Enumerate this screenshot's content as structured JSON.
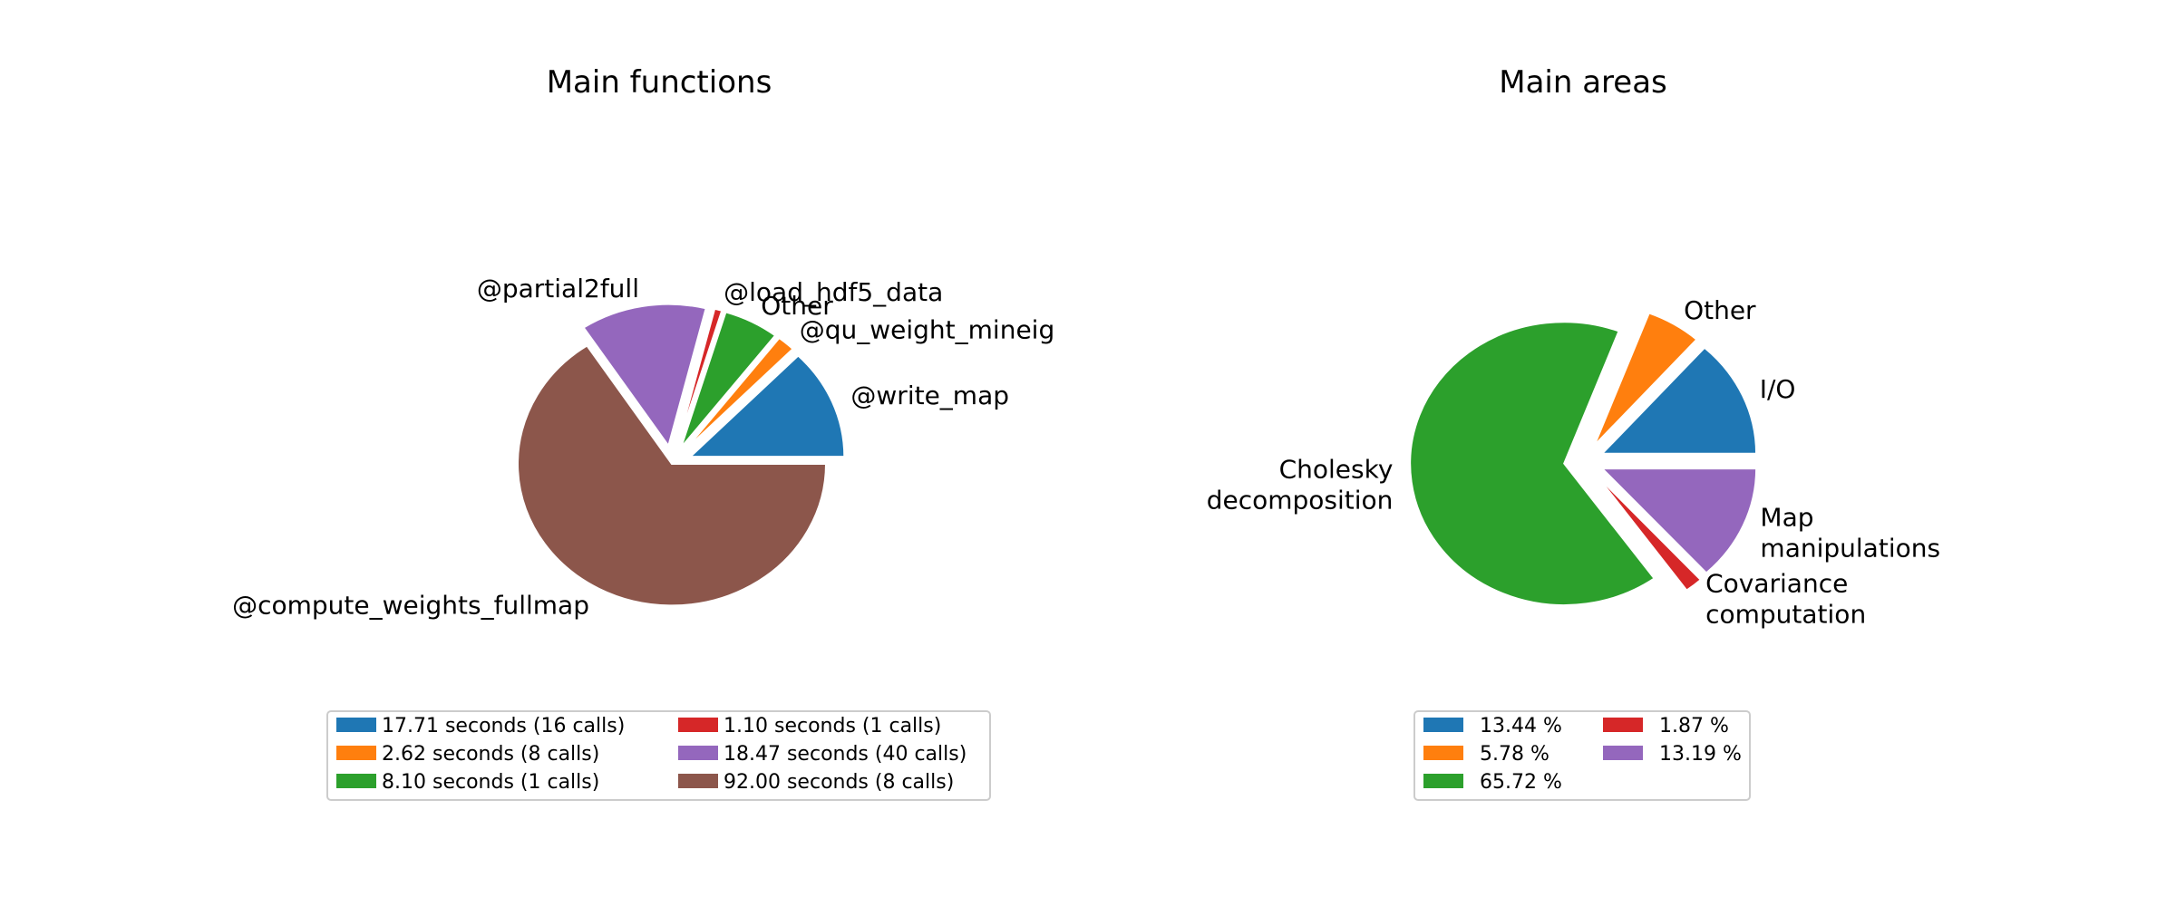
{
  "chart_data": [
    {
      "type": "pie",
      "title": "Main functions",
      "slices": [
        {
          "label": "@write_map",
          "value": 17.71,
          "legend": "17.71 seconds (16 calls)",
          "color": "#1f77b4",
          "exploded": true
        },
        {
          "label": "@qu_weight_mineig",
          "value": 2.62,
          "legend": "2.62 seconds (8 calls)",
          "color": "#ff7f0e",
          "exploded": true
        },
        {
          "label": "Other",
          "value": 8.1,
          "legend": "8.10 seconds (1 calls)",
          "color": "#2ca02c",
          "exploded": true
        },
        {
          "label": "@load_hdf5_data",
          "value": 1.1,
          "legend": "1.10 seconds (1 calls)",
          "color": "#d62728",
          "exploded": true
        },
        {
          "label": "@partial2full",
          "value": 18.47,
          "legend": "18.47 seconds (40 calls)",
          "color": "#9467bd",
          "exploded": true
        },
        {
          "label": "@compute_weights_fullmap",
          "value": 92.0,
          "legend": "92.00 seconds (8 calls)",
          "color": "#8c564b",
          "exploded": false
        }
      ],
      "legend_position": "lower-center",
      "legend_columns": 2
    },
    {
      "type": "pie",
      "title": "Main areas",
      "slices": [
        {
          "label": [
            "I/O"
          ],
          "value": 13.44,
          "legend": "13.44 %",
          "color": "#1f77b4",
          "exploded": true
        },
        {
          "label": [
            "Other"
          ],
          "value": 5.78,
          "legend": "5.78 %",
          "color": "#ff7f0e",
          "exploded": true
        },
        {
          "label": [
            "Cholesky",
            "decomposition"
          ],
          "value": 65.72,
          "legend": "65.72 %",
          "color": "#2ca02c",
          "exploded": true
        },
        {
          "label": [
            "Covariance",
            "computation"
          ],
          "value": 1.87,
          "legend": "1.87 %",
          "color": "#d62728",
          "exploded": true
        },
        {
          "label": [
            "Map",
            "manipulations"
          ],
          "value": 13.19,
          "legend": "13.19 %",
          "color": "#9467bd",
          "exploded": true
        }
      ],
      "legend_position": "lower-center",
      "legend_columns": 2
    }
  ]
}
